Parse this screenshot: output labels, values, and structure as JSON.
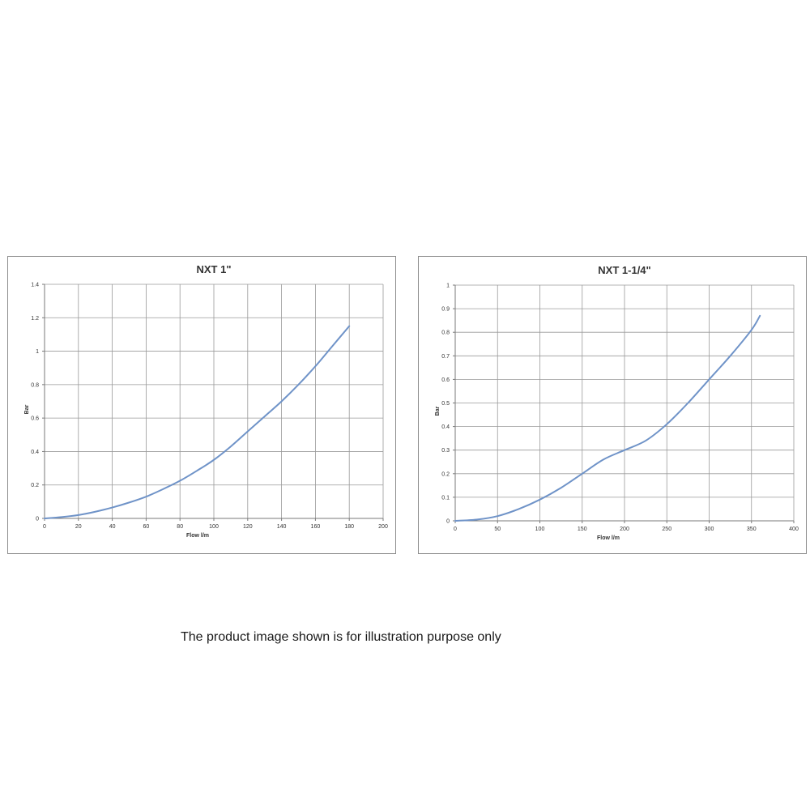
{
  "chart_data": [
    {
      "type": "line",
      "title": "NXT 1\"",
      "xlabel": "Flow l/m",
      "ylabel": "Bar",
      "xlim": [
        0,
        200
      ],
      "ylim": [
        0,
        1.4
      ],
      "xticks": [
        0,
        20,
        40,
        60,
        80,
        100,
        120,
        140,
        160,
        180,
        200
      ],
      "yticks": [
        0,
        0.2,
        0.4,
        0.6,
        0.8,
        1,
        1.2,
        1.4
      ],
      "grid": true,
      "series": [
        {
          "color": "#6f93c8",
          "x": [
            0,
            10,
            20,
            30,
            40,
            50,
            60,
            70,
            80,
            90,
            100,
            110,
            120,
            130,
            140,
            150,
            160,
            170,
            180
          ],
          "y": [
            0,
            0.008,
            0.02,
            0.04,
            0.065,
            0.095,
            0.13,
            0.175,
            0.225,
            0.285,
            0.35,
            0.43,
            0.52,
            0.61,
            0.7,
            0.8,
            0.91,
            1.03,
            1.15
          ]
        }
      ]
    },
    {
      "type": "line",
      "title": "NXT 1-1/4\"",
      "xlabel": "Flow l/m",
      "ylabel": "Bar",
      "xlim": [
        0,
        400
      ],
      "ylim": [
        0,
        1
      ],
      "xticks": [
        0,
        50,
        100,
        150,
        200,
        250,
        300,
        350,
        400
      ],
      "yticks": [
        0,
        0.1,
        0.2,
        0.3,
        0.4,
        0.5,
        0.6,
        0.7,
        0.8,
        0.9,
        1
      ],
      "grid": true,
      "series": [
        {
          "color": "#6f93c8",
          "x": [
            0,
            25,
            50,
            75,
            100,
            125,
            150,
            175,
            200,
            225,
            250,
            275,
            300,
            325,
            350,
            360
          ],
          "y": [
            0,
            0.005,
            0.02,
            0.05,
            0.09,
            0.14,
            0.2,
            0.26,
            0.3,
            0.34,
            0.41,
            0.5,
            0.6,
            0.7,
            0.81,
            0.87
          ]
        }
      ]
    }
  ],
  "footer": {
    "disclaimer": "The product image shown is for illustration purpose only"
  }
}
